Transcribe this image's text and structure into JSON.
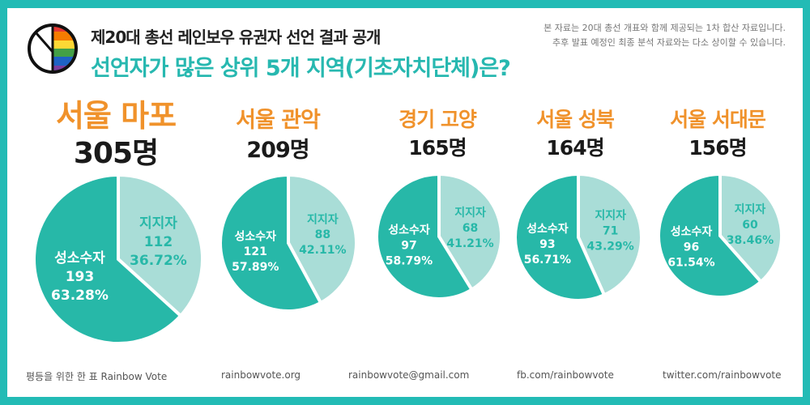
{
  "header": {
    "title": "제20대 총선 레인보우 유권자 선언 결과 공개",
    "subtitle": "선언자가 많은 상위 5개 지역(기초자치단체)은?",
    "note_line1": "본 자료는 20대 총선 개표와 함께 제공되는 1차 합산 자료입니다.",
    "note_line2": "추후 발표 예정인 최종 분석 자료와는 다소 상이할 수 있습니다."
  },
  "colors": {
    "border": "#22bbb5",
    "minority": "#27b8a8",
    "supporter": "#a9ddd7",
    "region": "#f0922b",
    "supporter_text": "#27b8a8"
  },
  "chart_data": [
    {
      "type": "pie",
      "title": "서울 마포",
      "total": "305명",
      "labels": [
        "지지자",
        "성소수자"
      ],
      "values": [
        112,
        193
      ],
      "percents": [
        "36.72%",
        "63.28%"
      ]
    },
    {
      "type": "pie",
      "title": "서울 관악",
      "total": "209명",
      "labels": [
        "지지자",
        "성소수자"
      ],
      "values": [
        88,
        121
      ],
      "percents": [
        "42.11%",
        "57.89%"
      ]
    },
    {
      "type": "pie",
      "title": "경기 고양",
      "total": "165명",
      "labels": [
        "지지자",
        "성소수자"
      ],
      "values": [
        68,
        97
      ],
      "percents": [
        "41.21%",
        "58.79%"
      ]
    },
    {
      "type": "pie",
      "title": "서울 성북",
      "total": "164명",
      "labels": [
        "지지자",
        "성소수자"
      ],
      "values": [
        71,
        93
      ],
      "percents": [
        "43.29%",
        "56.71%"
      ]
    },
    {
      "type": "pie",
      "title": "서울 서대문",
      "total": "156명",
      "labels": [
        "지지자",
        "성소수자"
      ],
      "values": [
        60,
        96
      ],
      "percents": [
        "38.46%",
        "61.54%"
      ]
    }
  ],
  "footer": {
    "org": "평등을 위한 한 표 Rainbow Vote",
    "site": "rainbowvote.org",
    "email": "rainbowvote@gmail.com",
    "fb": "fb.com/rainbowvote",
    "twitter": "twitter.com/rainbowvote"
  }
}
